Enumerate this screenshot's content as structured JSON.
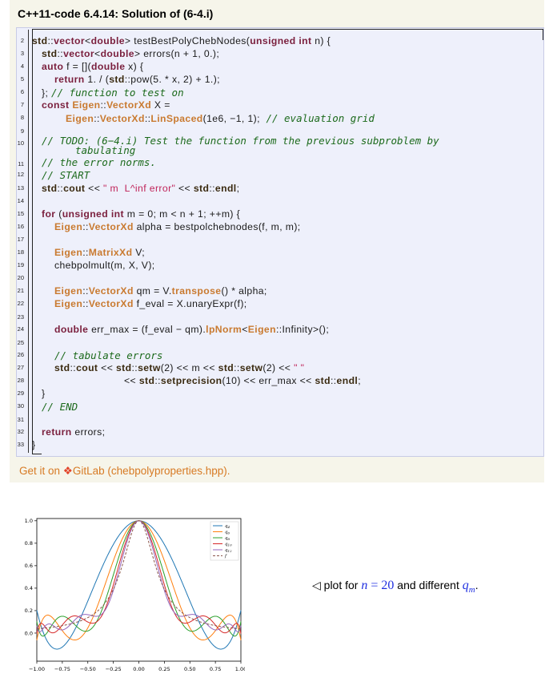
{
  "listing": {
    "title": "C++11-code 6.4.14: Solution of (6-4.i)",
    "lines": [
      {
        "n": "2",
        "y": 44
      },
      {
        "n": "3",
        "y": 60
      },
      {
        "n": "4",
        "y": 76
      },
      {
        "n": "5",
        "y": 92
      },
      {
        "n": "6",
        "y": 108
      },
      {
        "n": "7",
        "y": 124
      },
      {
        "n": "8",
        "y": 140
      },
      {
        "n": "9",
        "y": 157
      },
      {
        "n": "10",
        "y": 172
      },
      {
        "n": "11",
        "y": 198
      },
      {
        "n": "12",
        "y": 214
      },
      {
        "n": "13",
        "y": 230
      },
      {
        "n": "14",
        "y": 246
      },
      {
        "n": "15",
        "y": 262
      },
      {
        "n": "16",
        "y": 278
      },
      {
        "n": "17",
        "y": 294
      },
      {
        "n": "18",
        "y": 310
      },
      {
        "n": "19",
        "y": 326
      },
      {
        "n": "20",
        "y": 342
      },
      {
        "n": "21",
        "y": 358
      },
      {
        "n": "22",
        "y": 374
      },
      {
        "n": "23",
        "y": 391
      },
      {
        "n": "24",
        "y": 406
      },
      {
        "n": "25",
        "y": 423
      },
      {
        "n": "26",
        "y": 438
      },
      {
        "n": "27",
        "y": 454
      },
      {
        "n": "28",
        "y": 470
      },
      {
        "n": "29",
        "y": 486
      },
      {
        "n": "30",
        "y": 502
      },
      {
        "n": "31",
        "y": 519
      },
      {
        "n": "32",
        "y": 534
      },
      {
        "n": "33",
        "y": 550
      }
    ],
    "code": {
      "l2": "std::vector<double> testBestPolyChebNodes(unsigned int n) {",
      "l3": "std::vector<double> errors(n + 1, 0.);",
      "l4": "auto f = [](double x) {",
      "l5": "return 1. / (std::pow(5. * x, 2) + 1.);",
      "l6a": "};",
      "l6b": "// function to test on",
      "l7": "const Eigen::VectorXd X =",
      "l8a": "Eigen::VectorXd::LinSpaced(1e6, -1, 1);",
      "l8b": "// evaluation grid",
      "l10a": "// TODO: (6-4.i) Test the function from the previous subproblem by",
      "l10b": "tabulating",
      "l11": "// the error norms.",
      "l12": "// START",
      "l13a": "std::cout <<",
      "l13b": "\" m  L^inf error\"",
      "l13c": "<< std::endl;",
      "l15": "for (unsigned int m = 0; m < n + 1; ++m) {",
      "l16": "Eigen::VectorXd alpha = bestpolchebnodes(f, m, m);",
      "l18": "Eigen::MatrixXd V;",
      "l19": "chebpolmult(m, X, V);",
      "l21": "Eigen::VectorXd qm = V.transpose() * alpha;",
      "l22": "Eigen::VectorXd f_eval = X.unaryExpr(f);",
      "l24": "double err_max = (f_eval - qm).lpNorm<Eigen::Infinity>();",
      "l26": "// tabulate errors",
      "l27a": "std::cout << std::setw(2) << m << std::setw(2) <<",
      "l27b": "\" \"",
      "l28": "<< std::setprecision(10) << err_max << std::endl;",
      "l29": "}",
      "l30": "// END",
      "l32": "return errors;",
      "l33": "}"
    }
  },
  "gitlab_link": {
    "prefix": "Get it on",
    "icon": "gitlab-fox-icon",
    "text": "GitLab (chebpolyproperties.hpp)."
  },
  "caption": {
    "prefix": "◁ plot for",
    "n_var": "n",
    "eq": " = ",
    "n_val": "20",
    "middle": " and different ",
    "q": "q",
    "q_sub": "m",
    "suffix": "."
  },
  "chart_data": {
    "type": "line",
    "xlim": [
      -1.0,
      1.0
    ],
    "ylim": [
      -0.25,
      1.02
    ],
    "xticks": [
      "-1.00",
      "-0.75",
      "-0.50",
      "-0.25",
      "0.00",
      "0.25",
      "0.50",
      "0.75",
      "1.00"
    ],
    "yticks": [
      "0.0",
      "0.2",
      "0.4",
      "0.6",
      "0.8",
      "1.0"
    ],
    "legend_position": "top-right",
    "series": [
      {
        "name": "q4",
        "color": "#1f77b4",
        "dash": false
      },
      {
        "name": "q6",
        "color": "#ff7f0e",
        "dash": false
      },
      {
        "name": "q8",
        "color": "#2ca02c",
        "dash": false
      },
      {
        "name": "q10",
        "color": "#d62728",
        "dash": false
      },
      {
        "name": "q12",
        "color": "#9467bd",
        "dash": false
      },
      {
        "name": "f",
        "color": "#8c564b",
        "dash": true
      }
    ],
    "function": "1/(25x^2+1)",
    "grid": false
  }
}
